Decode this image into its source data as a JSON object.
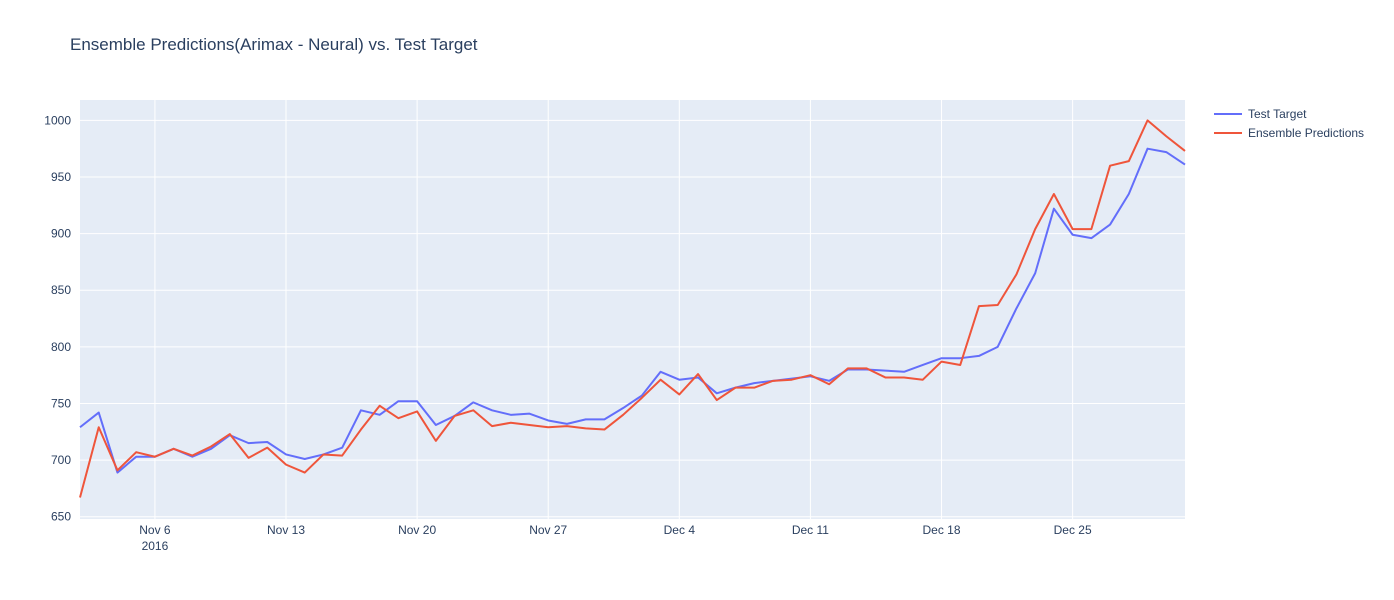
{
  "chart_data": {
    "type": "line",
    "title": "Ensemble Predictions(Arimax - Neural) vs. Test Target",
    "xlabel": "",
    "ylabel": "",
    "x_start": "2016-11-02",
    "x_end": "2016-12-31",
    "x_step_days": 1,
    "xlim": [
      "2016-11-02",
      "2016-12-31"
    ],
    "ylim": [
      648,
      1018
    ],
    "x_ticks": [
      {
        "date": "2016-11-06",
        "label": "Nov 6",
        "sublabel": "2016"
      },
      {
        "date": "2016-11-13",
        "label": "Nov 13",
        "sublabel": ""
      },
      {
        "date": "2016-11-20",
        "label": "Nov 20",
        "sublabel": ""
      },
      {
        "date": "2016-11-27",
        "label": "Nov 27",
        "sublabel": ""
      },
      {
        "date": "2016-12-04",
        "label": "Dec 4",
        "sublabel": ""
      },
      {
        "date": "2016-12-11",
        "label": "Dec 11",
        "sublabel": ""
      },
      {
        "date": "2016-12-18",
        "label": "Dec 18",
        "sublabel": ""
      },
      {
        "date": "2016-12-25",
        "label": "Dec 25",
        "sublabel": ""
      }
    ],
    "y_ticks": [
      650,
      700,
      750,
      800,
      850,
      900,
      950,
      1000
    ],
    "grid": true,
    "legend_position": "top-right",
    "series": [
      {
        "name": "Test Target",
        "color": "#636efa",
        "values": [
          729,
          742,
          689,
          703,
          703,
          710,
          703,
          710,
          722,
          715,
          716,
          705,
          701,
          705,
          711,
          744,
          740,
          752,
          752,
          731,
          739,
          751,
          744,
          740,
          741,
          735,
          732,
          736,
          736,
          746,
          757,
          778,
          771,
          773,
          759,
          764,
          768,
          770,
          772,
          774,
          770,
          780,
          780,
          779,
          778,
          784,
          790,
          790,
          792,
          800,
          834,
          865,
          922,
          899,
          896,
          908,
          935,
          975,
          972,
          961
        ]
      },
      {
        "name": "Ensemble Predictions",
        "color": "#ef553b",
        "values": [
          667,
          729,
          691,
          707,
          703,
          710,
          704,
          712,
          723,
          702,
          711,
          696,
          689,
          705,
          704,
          727,
          748,
          737,
          743,
          717,
          739,
          744,
          730,
          733,
          731,
          729,
          730,
          728,
          727,
          740,
          755,
          771,
          758,
          776,
          753,
          764,
          764,
          770,
          771,
          775,
          767,
          781,
          781,
          773,
          773,
          771,
          787,
          784,
          836,
          837,
          864,
          904,
          935,
          904,
          904,
          960,
          964,
          1000,
          986,
          973
        ]
      }
    ]
  }
}
